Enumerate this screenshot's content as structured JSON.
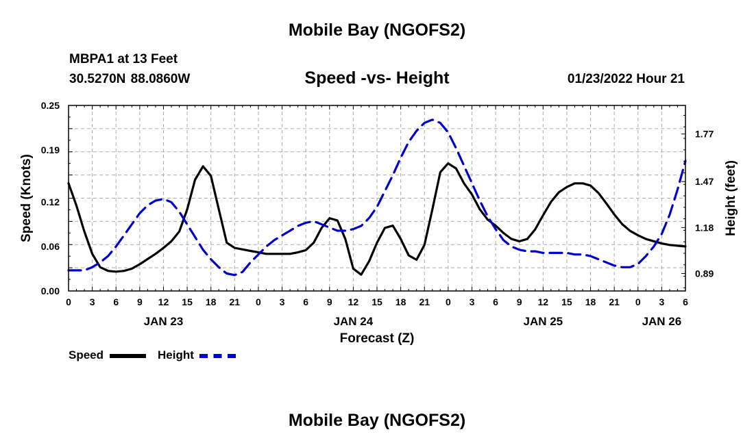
{
  "header": {
    "title": "Mobile Bay (NGOFS2)",
    "station": "MBPA1 at 13 Feet",
    "coords": "30.5270N  88.0860W",
    "subtitle": "Speed -vs- Height",
    "forecast_time": "01/23/2022 Hour 21"
  },
  "footer": {
    "title": "Mobile Bay (NGOFS2)"
  },
  "legend": {
    "speed_label": "Speed",
    "height_label": "Height"
  },
  "colors": {
    "speed": "#000000",
    "height": "#0000cc",
    "grid": "#aaaaaa"
  },
  "chart_data": {
    "type": "line",
    "title": "Speed -vs- Height",
    "xlabel": "Forecast (Z)",
    "ylabel": "Speed (Knots)",
    "y2label": "Height (feet)",
    "xlim": [
      0,
      78
    ],
    "ylim": [
      0,
      0.25
    ],
    "y2lim": [
      0.78,
      1.95
    ],
    "x_ticks": [
      0,
      3,
      6,
      9,
      12,
      15,
      18,
      21,
      24,
      27,
      30,
      33,
      36,
      39,
      42,
      45,
      48,
      51,
      54,
      57,
      60,
      63,
      66,
      69,
      72,
      75,
      78
    ],
    "x_tick_labels": [
      "0",
      "3",
      "6",
      "9",
      "12",
      "15",
      "18",
      "21",
      "0",
      "3",
      "6",
      "9",
      "12",
      "15",
      "18",
      "21",
      "0",
      "3",
      "6",
      "9",
      "12",
      "15",
      "18",
      "21",
      "0",
      "3",
      "6"
    ],
    "day_labels": [
      {
        "x": 12,
        "label": "JAN 23"
      },
      {
        "x": 36,
        "label": "JAN 24"
      },
      {
        "x": 60,
        "label": "JAN 25"
      },
      {
        "x": 75,
        "label": "JAN 26"
      }
    ],
    "y_ticks": [
      0.0,
      0.06,
      0.12,
      0.19,
      0.25
    ],
    "y_tick_labels": [
      "0.00",
      "0.06",
      "0.12",
      "0.19",
      "0.25"
    ],
    "y2_ticks": [
      0.89,
      1.18,
      1.47,
      1.77
    ],
    "y2_tick_labels": [
      "0.89",
      "1.18",
      "1.47",
      "1.77"
    ],
    "series": [
      {
        "name": "Speed",
        "axis": "left",
        "style": "solid",
        "x": [
          0,
          1,
          2,
          3,
          4,
          5,
          6,
          7,
          8,
          9,
          10,
          11,
          12,
          13,
          14,
          15,
          16,
          17,
          18,
          19,
          20,
          21,
          22,
          23,
          24,
          25,
          26,
          27,
          28,
          29,
          30,
          31,
          32,
          33,
          34,
          35,
          36,
          37,
          38,
          39,
          40,
          41,
          42,
          43,
          44,
          45,
          46,
          47,
          48,
          49,
          50,
          51,
          52,
          53,
          54,
          55,
          56,
          57,
          58,
          59,
          60,
          61,
          62,
          63,
          64,
          65,
          66,
          67,
          68,
          69,
          70,
          71,
          72,
          73,
          74,
          75,
          76,
          77,
          78
        ],
        "values": [
          0.145,
          0.115,
          0.08,
          0.05,
          0.032,
          0.027,
          0.026,
          0.027,
          0.03,
          0.036,
          0.043,
          0.05,
          0.058,
          0.067,
          0.08,
          0.11,
          0.15,
          0.168,
          0.155,
          0.11,
          0.065,
          0.058,
          0.056,
          0.054,
          0.052,
          0.05,
          0.05,
          0.05,
          0.05,
          0.052,
          0.055,
          0.065,
          0.085,
          0.098,
          0.095,
          0.07,
          0.03,
          0.022,
          0.04,
          0.065,
          0.085,
          0.088,
          0.07,
          0.048,
          0.042,
          0.062,
          0.11,
          0.16,
          0.172,
          0.165,
          0.145,
          0.13,
          0.11,
          0.096,
          0.088,
          0.078,
          0.07,
          0.067,
          0.07,
          0.083,
          0.102,
          0.12,
          0.133,
          0.14,
          0.145,
          0.145,
          0.142,
          0.132,
          0.118,
          0.103,
          0.09,
          0.081,
          0.075,
          0.07,
          0.067,
          0.064,
          0.062,
          0.061,
          0.06
        ]
      },
      {
        "name": "Height",
        "axis": "right",
        "style": "dashed",
        "x": [
          0,
          1,
          2,
          3,
          4,
          5,
          6,
          7,
          8,
          9,
          10,
          11,
          12,
          13,
          14,
          15,
          16,
          17,
          18,
          19,
          20,
          21,
          22,
          23,
          24,
          25,
          26,
          27,
          28,
          29,
          30,
          31,
          32,
          33,
          34,
          35,
          36,
          37,
          38,
          39,
          40,
          41,
          42,
          43,
          44,
          45,
          46,
          47,
          48,
          49,
          50,
          51,
          52,
          53,
          54,
          55,
          56,
          57,
          58,
          59,
          60,
          61,
          62,
          63,
          64,
          65,
          66,
          67,
          68,
          69,
          70,
          71,
          72,
          73,
          74,
          75,
          76,
          77,
          78
        ],
        "values": [
          0.91,
          0.91,
          0.91,
          0.93,
          0.96,
          1.0,
          1.06,
          1.13,
          1.2,
          1.27,
          1.32,
          1.35,
          1.36,
          1.34,
          1.28,
          1.2,
          1.12,
          1.04,
          0.98,
          0.93,
          0.89,
          0.88,
          0.9,
          0.96,
          1.01,
          1.06,
          1.1,
          1.13,
          1.16,
          1.19,
          1.21,
          1.22,
          1.2,
          1.18,
          1.16,
          1.16,
          1.17,
          1.19,
          1.24,
          1.31,
          1.41,
          1.51,
          1.62,
          1.72,
          1.79,
          1.84,
          1.86,
          1.84,
          1.78,
          1.68,
          1.57,
          1.46,
          1.35,
          1.25,
          1.17,
          1.1,
          1.06,
          1.04,
          1.03,
          1.03,
          1.02,
          1.02,
          1.02,
          1.02,
          1.01,
          1.01,
          1.0,
          0.98,
          0.96,
          0.94,
          0.93,
          0.93,
          0.95,
          1.0,
          1.06,
          1.14,
          1.26,
          1.42,
          1.6
        ]
      }
    ],
    "legend": {
      "position": "bottom-left",
      "entries": [
        "Speed",
        "Height"
      ]
    },
    "grid": true
  }
}
